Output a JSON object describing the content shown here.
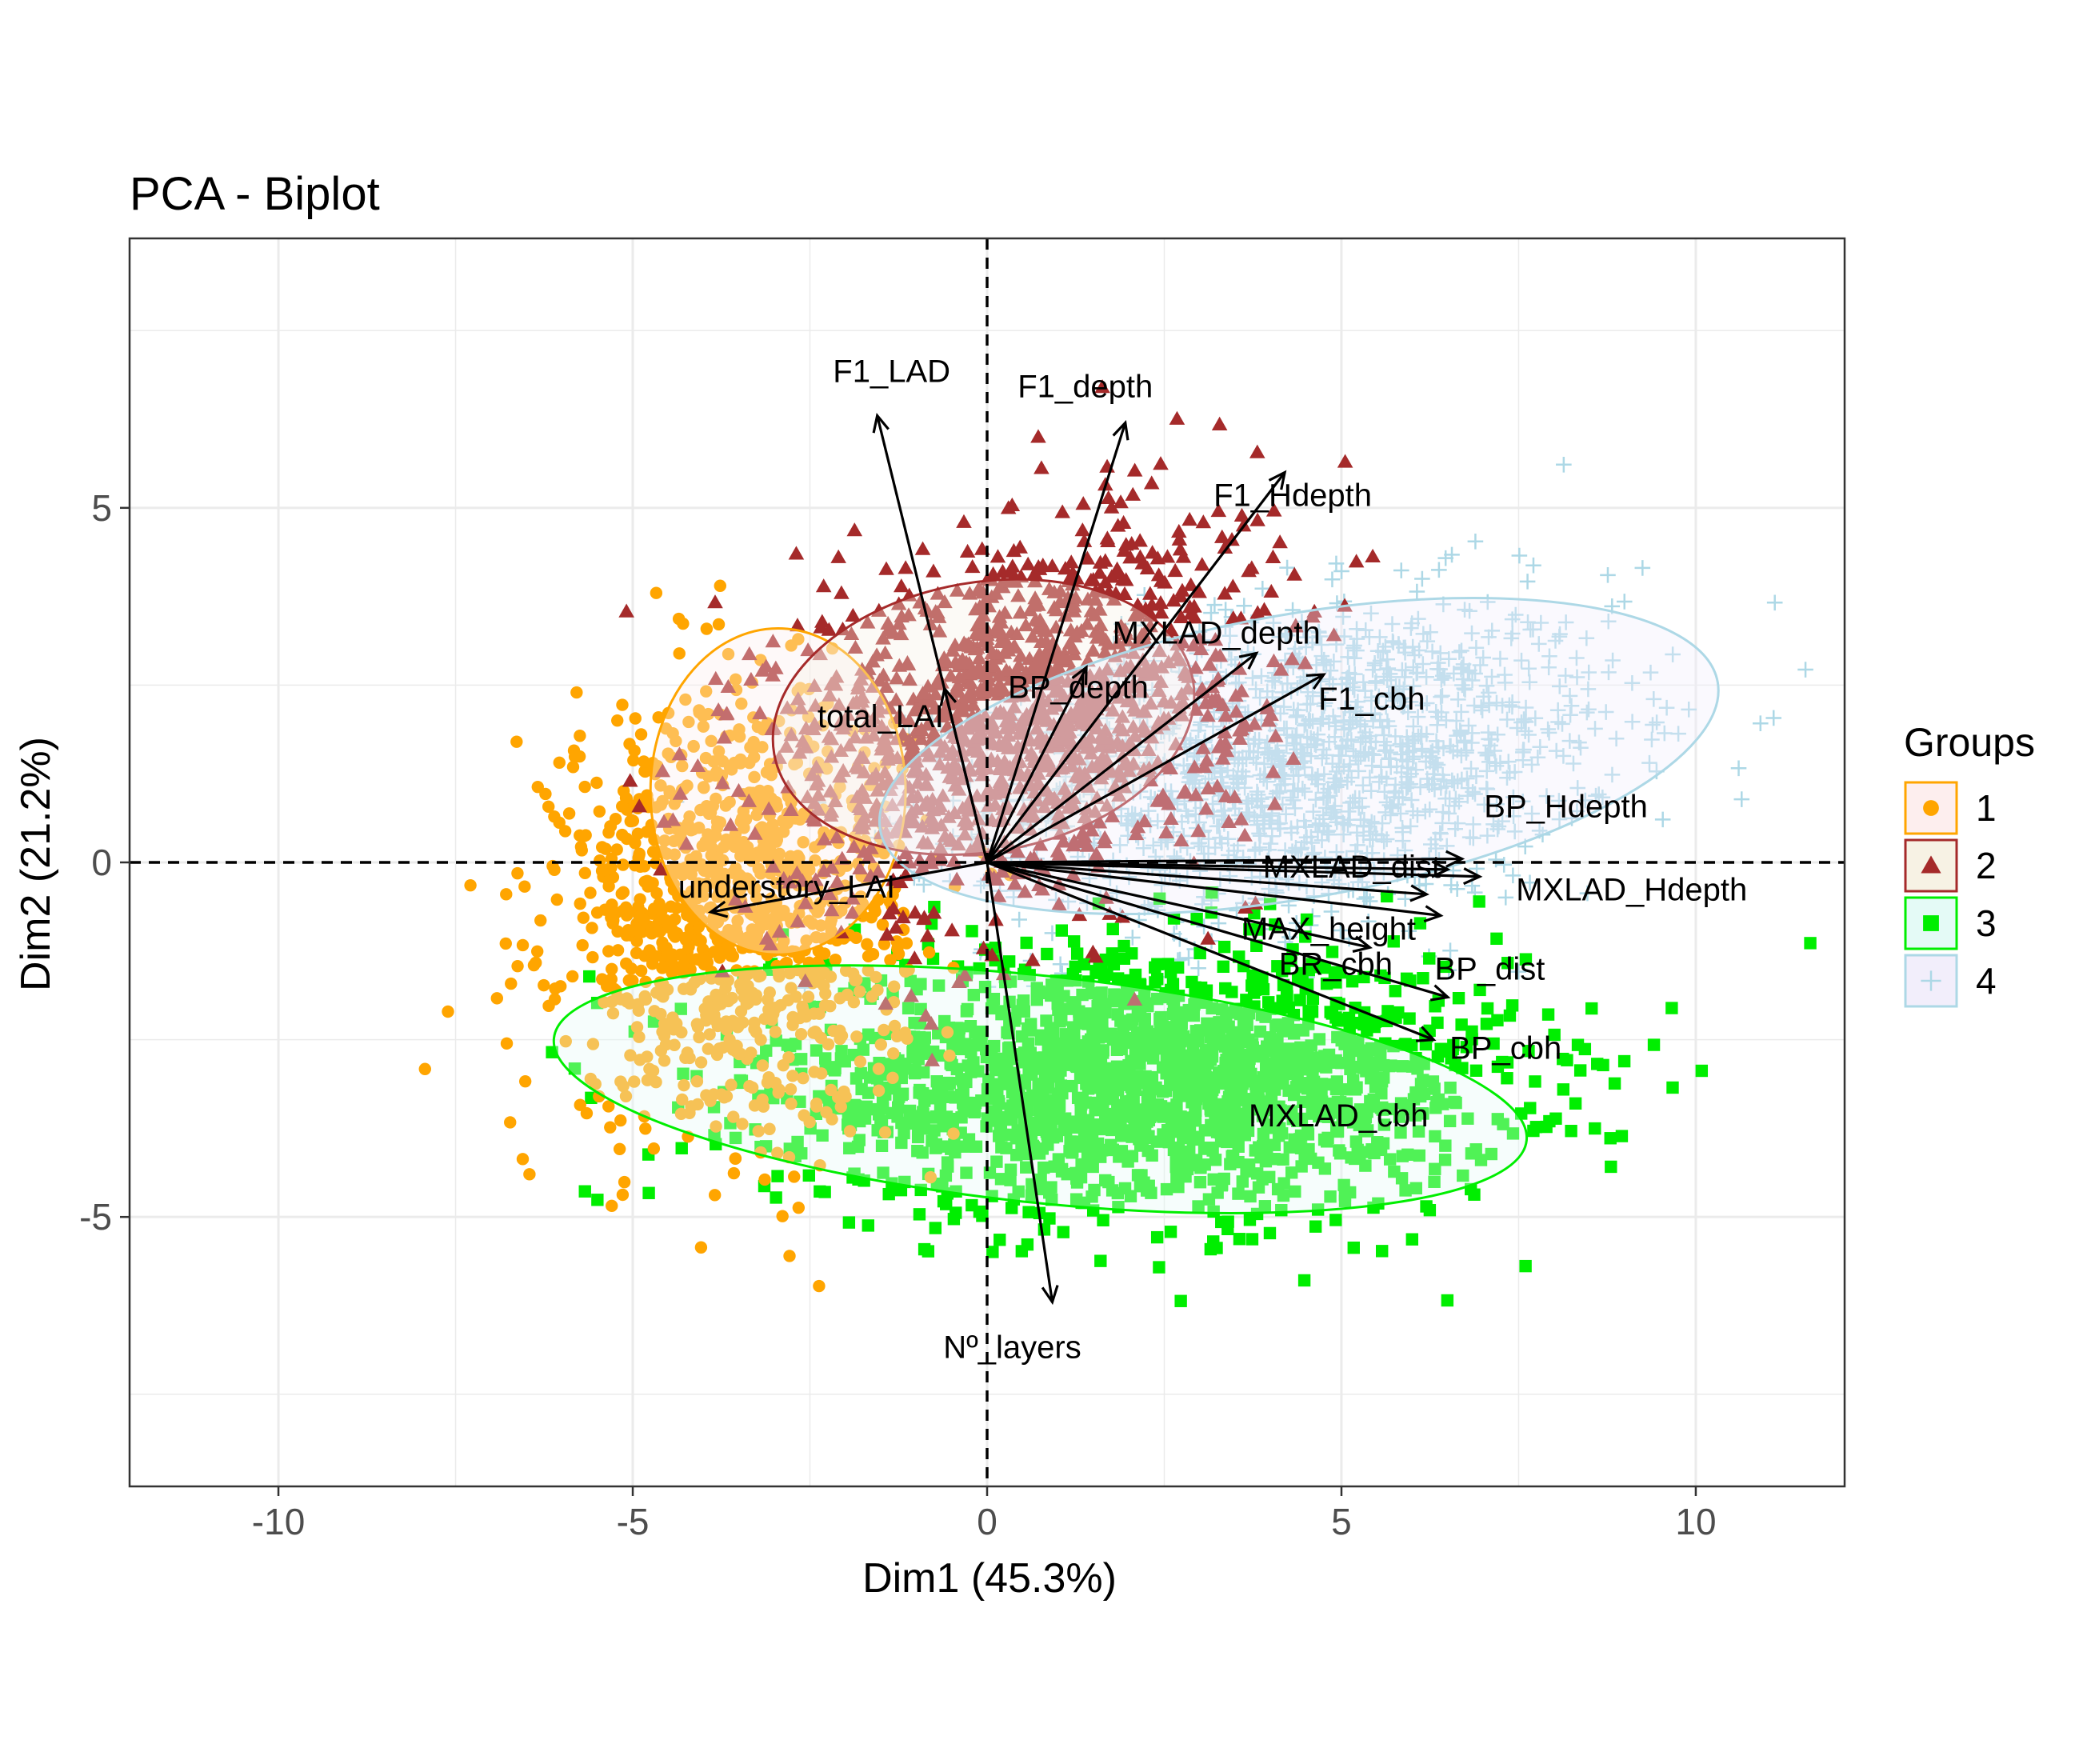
{
  "chart_data": {
    "type": "scatter",
    "title": "PCA - Biplot",
    "xlabel": "Dim1 (45.3%)",
    "ylabel": "Dim2 (21.2%)",
    "xlim": [
      -12.1,
      12.1
    ],
    "ylim": [
      -8.8,
      8.8
    ],
    "x_ticks": [
      -10,
      -5,
      0,
      5,
      10
    ],
    "y_ticks": [
      -5,
      0,
      5
    ],
    "x_tick_labels": [
      "-10",
      "-5",
      "0",
      "5",
      "10"
    ],
    "y_tick_labels": [
      "-5",
      "0",
      "5"
    ],
    "grid": true,
    "reference_lines": {
      "x": 0,
      "y": 0,
      "style": "dashed"
    },
    "legend": {
      "title": "Groups",
      "position": "right",
      "entries": [
        {
          "label": "1",
          "shape": "circle",
          "color": "#FFA500",
          "fill": "#FDEEEE"
        },
        {
          "label": "2",
          "shape": "triangle",
          "color": "#A52A2A",
          "fill": "#F7F2E4"
        },
        {
          "label": "3",
          "shape": "square",
          "color": "#00EE00",
          "fill": "#E4FAF6"
        },
        {
          "label": "4",
          "shape": "plus",
          "color": "#ADD8E6",
          "fill": "#F2EEFB"
        }
      ]
    },
    "groups": [
      {
        "label": "1",
        "color": "#FFA500",
        "ellipse": {
          "cx": -2.95,
          "cy": 1.0,
          "rx": 1.8,
          "ry": 2.3,
          "rotation": 0
        },
        "point_spread": {
          "cx": -3.6,
          "cy": -0.7,
          "sx": 1.2,
          "sy": 1.5
        }
      },
      {
        "label": "2",
        "color": "#A52A2A",
        "ellipse": {
          "cx": -0.05,
          "cy": 2.05,
          "rx": 3.0,
          "ry": 1.9,
          "rotation": 10
        },
        "point_spread": {
          "cx": 0.4,
          "cy": 2.1,
          "sx": 1.7,
          "sy": 1.3
        }
      },
      {
        "label": "3",
        "color": "#00EE00",
        "ellipse": {
          "cx": 0.75,
          "cy": -3.2,
          "rx": 6.9,
          "ry": 1.6,
          "rotation": -6
        },
        "point_spread": {
          "cx": 2.2,
          "cy": -3.1,
          "sx": 2.6,
          "sy": 0.9
        }
      },
      {
        "label": "4",
        "color": "#ADD8E6",
        "ellipse": {
          "cx": 4.4,
          "cy": 1.5,
          "rx": 6.0,
          "ry": 2.0,
          "rotation": 10
        },
        "point_spread": {
          "cx": 4.5,
          "cy": 1.4,
          "sx": 2.2,
          "sy": 1.1
        }
      }
    ],
    "variables": [
      {
        "name": "F1_LAD",
        "x": -1.55,
        "y": 6.3
      },
      {
        "name": "F1_depth",
        "x": 1.95,
        "y": 6.2
      },
      {
        "name": "F1_Hdepth",
        "x": 4.2,
        "y": 5.5
      },
      {
        "name": "MXLAD_depth",
        "x": 3.8,
        "y": 2.95
      },
      {
        "name": "BP_depth",
        "x": 1.4,
        "y": 2.75
      },
      {
        "name": "total_LAI",
        "x": -0.6,
        "y": 2.45
      },
      {
        "name": "F1_cbh",
        "x": 4.75,
        "y": 2.65
      },
      {
        "name": "BP_Hdepth",
        "x": 6.7,
        "y": 0.05
      },
      {
        "name": "MXLAD_dist",
        "x": 6.5,
        "y": -0.1
      },
      {
        "name": "MXLAD_Hdepth",
        "x": 6.95,
        "y": -0.2
      },
      {
        "name": "MAX_height",
        "x": 6.4,
        "y": -0.75
      },
      {
        "name": "BP_dist",
        "x": 5.4,
        "y": -1.2
      },
      {
        "name": "BR_cbh",
        "x": 6.5,
        "y": -1.9
      },
      {
        "name": "BP_cbh",
        "x": 6.3,
        "y": -2.5
      },
      {
        "name": "MXLAD_cbh",
        "x": 6.2,
        "y": -0.45
      },
      {
        "name": "understory_LAI",
        "x": -3.9,
        "y": -0.7
      },
      {
        "name": "Nº_layers",
        "x": 0.92,
        "y": -6.2
      }
    ]
  }
}
